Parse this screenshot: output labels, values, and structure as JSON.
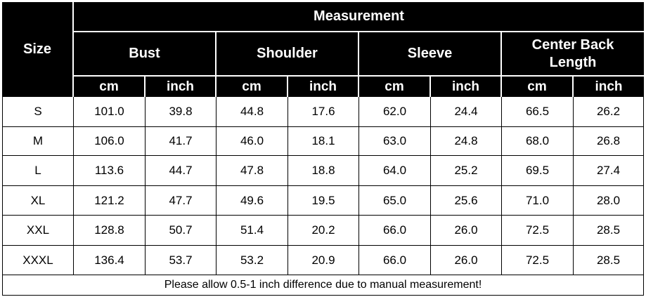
{
  "header": {
    "size": "Size",
    "measurement": "Measurement",
    "groups": [
      "Bust",
      "Shoulder",
      "Sleeve",
      "Center Back Length"
    ],
    "units": [
      "cm",
      "inch",
      "cm",
      "inch",
      "cm",
      "inch",
      "cm",
      "inch"
    ]
  },
  "table": {
    "rows": [
      [
        "S",
        "101.0",
        "39.8",
        "44.8",
        "17.6",
        "62.0",
        "24.4",
        "66.5",
        "26.2"
      ],
      [
        "M",
        "106.0",
        "41.7",
        "46.0",
        "18.1",
        "63.0",
        "24.8",
        "68.0",
        "26.8"
      ],
      [
        "L",
        "113.6",
        "44.7",
        "47.8",
        "18.8",
        "64.0",
        "25.2",
        "69.5",
        "27.4"
      ],
      [
        "XL",
        "121.2",
        "47.7",
        "49.6",
        "19.5",
        "65.0",
        "25.6",
        "71.0",
        "28.0"
      ],
      [
        "XXL",
        "128.8",
        "50.7",
        "51.4",
        "20.2",
        "66.0",
        "26.0",
        "72.5",
        "28.5"
      ],
      [
        "XXXL",
        "136.4",
        "53.7",
        "53.2",
        "20.9",
        "66.0",
        "26.0",
        "72.5",
        "28.5"
      ]
    ]
  },
  "footer": "Please allow 0.5-1 inch difference due to manual measurement!"
}
